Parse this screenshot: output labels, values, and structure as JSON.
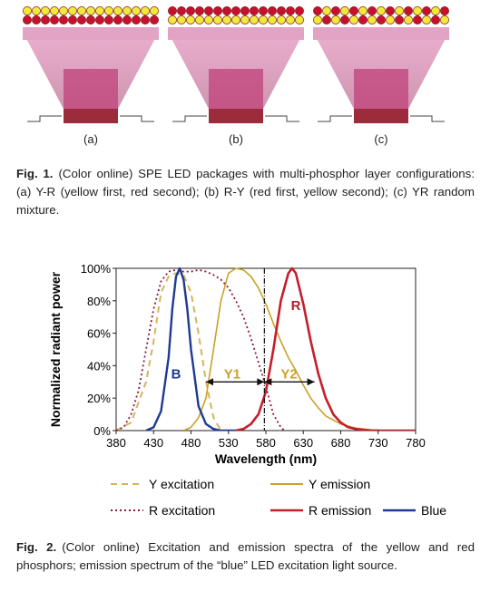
{
  "figure1": {
    "panels": [
      {
        "label": "(a)",
        "layers": [
          "yellow",
          "red"
        ]
      },
      {
        "label": "(b)",
        "layers": [
          "red",
          "yellow"
        ]
      },
      {
        "label": "(c)",
        "layers": [
          "mixed",
          "mixed"
        ]
      }
    ],
    "caption": {
      "label": "Fig. 1.",
      "text": "(Color online) SPE LED packages with multi-phosphor layer configurations: (a) Y-R (yellow first, red second); (b) R-Y (red first, yellow second); (c) YR random mixture."
    },
    "colors": {
      "yellow": "#f2e83a",
      "red": "#c8102e",
      "cup": "#d48fb6",
      "led": "#b04060"
    }
  },
  "figure2": {
    "caption": {
      "label": "Fig. 2.",
      "text": "(Color online) Excitation and emission spectra of the yellow and red phosphors; emission spectrum of the “blue” LED excitation light source."
    },
    "chart_data": {
      "type": "line",
      "xlabel": "Wavelength (nm)",
      "ylabel": "Normalized radiant power",
      "xlim": [
        380,
        780
      ],
      "ylim": [
        0,
        100
      ],
      "xticks": [
        380,
        430,
        480,
        530,
        580,
        630,
        680,
        730,
        780
      ],
      "yticks": [
        0,
        20,
        40,
        60,
        80,
        100
      ],
      "ytick_labels": [
        "0%",
        "20%",
        "40%",
        "60%",
        "80%",
        "100%"
      ],
      "grid": false,
      "legend_position": "bottom",
      "vline_x": 578,
      "annotations": [
        {
          "text": "B",
          "x": 460,
          "y": 35,
          "color": "#1f3a93"
        },
        {
          "text": "Y1",
          "x": 535,
          "y": 35,
          "color": "#c9a227"
        },
        {
          "text": "Y2",
          "x": 611,
          "y": 35,
          "color": "#c9a227"
        },
        {
          "text": "R",
          "x": 620,
          "y": 77,
          "color": "#b0202e"
        }
      ],
      "arrows": [
        {
          "from": 500,
          "to": 578,
          "y": 30
        },
        {
          "from": 578,
          "to": 645,
          "y": 30
        }
      ],
      "series": [
        {
          "name": "Y excitation",
          "color": "#d8b35a",
          "dash": "7,5",
          "width": 2,
          "x": [
            380,
            400,
            420,
            430,
            440,
            450,
            460,
            470,
            480,
            490,
            500,
            510,
            520
          ],
          "y": [
            0,
            5,
            30,
            55,
            85,
            95,
            97,
            96,
            85,
            60,
            30,
            8,
            0
          ]
        },
        {
          "name": "Y emission",
          "color": "#c9a227",
          "dash": "",
          "width": 1.6,
          "x": [
            470,
            480,
            490,
            500,
            510,
            520,
            530,
            540,
            550,
            560,
            570,
            580,
            590,
            600,
            610,
            620,
            630,
            640,
            650,
            660,
            680,
            700,
            720,
            740,
            760,
            780
          ],
          "y": [
            0,
            2,
            8,
            20,
            50,
            80,
            97,
            100,
            99,
            95,
            88,
            78,
            66,
            55,
            45,
            37,
            28,
            20,
            14,
            9,
            4,
            1.5,
            0.5,
            0,
            0,
            0
          ]
        },
        {
          "name": "R excitation",
          "color": "#8b1a3a",
          "dash": "2,3",
          "width": 1.8,
          "x": [
            380,
            390,
            400,
            410,
            420,
            430,
            440,
            450,
            460,
            470,
            480,
            490,
            500,
            510,
            520,
            530,
            540,
            550,
            560,
            570,
            580,
            590,
            600,
            605
          ],
          "y": [
            0,
            2,
            10,
            25,
            50,
            75,
            92,
            98,
            99,
            98,
            98,
            99,
            98,
            96,
            93,
            88,
            80,
            70,
            57,
            42,
            27,
            10,
            2,
            0
          ]
        },
        {
          "name": "R emission",
          "color": "#c41e2a",
          "dash": "",
          "width": 2.6,
          "x": [
            540,
            550,
            560,
            570,
            580,
            590,
            600,
            610,
            615,
            620,
            630,
            640,
            650,
            660,
            670,
            680,
            690,
            700,
            720,
            740,
            760,
            780
          ],
          "y": [
            0,
            1,
            4,
            10,
            24,
            50,
            80,
            97,
            100,
            97,
            78,
            55,
            35,
            20,
            10,
            5,
            2,
            1,
            0,
            0,
            0,
            0
          ]
        },
        {
          "name": "Blue",
          "color": "#1f3a93",
          "dash": "",
          "width": 2.4,
          "x": [
            420,
            430,
            440,
            450,
            455,
            460,
            465,
            470,
            475,
            480,
            490,
            500,
            510,
            520,
            540
          ],
          "y": [
            0,
            2,
            12,
            45,
            75,
            95,
            100,
            93,
            75,
            50,
            15,
            4,
            1,
            0,
            0
          ]
        }
      ]
    }
  }
}
